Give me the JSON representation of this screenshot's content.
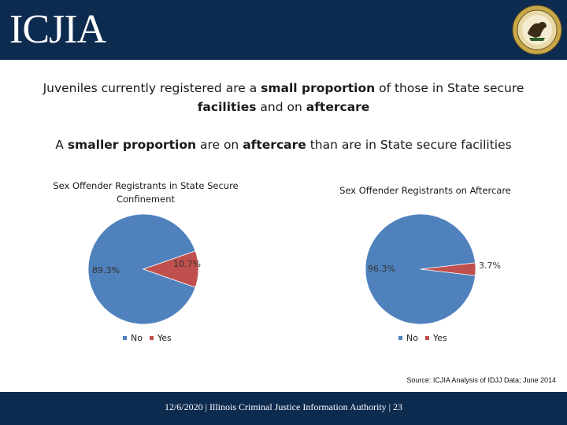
{
  "header": {
    "logo_text": "ICJIA"
  },
  "headline1": {
    "p1": "Juveniles currently registered are a ",
    "b1": "small proportion",
    "p2": " of those in State secure",
    "b2": "facilities",
    "p3": " and on ",
    "b3": "aftercare"
  },
  "headline2": {
    "p1": "A ",
    "b1": "smaller proportion",
    "p2": " are on ",
    "b2": "aftercare",
    "p3": " than are in State secure facilities"
  },
  "colors": {
    "no": "#4f81bd",
    "yes": "#c0504d",
    "header_bg": "#0d2a4f"
  },
  "chart_data": [
    {
      "type": "pie",
      "title": "Sex Offender Registrants in State Secure Confinement",
      "categories": [
        "No",
        "Yes"
      ],
      "values": [
        89.3,
        10.7
      ],
      "labels": [
        "89.3%",
        "10.7%"
      ],
      "legend": [
        "No",
        "Yes"
      ]
    },
    {
      "type": "pie",
      "title": "Sex Offender Registrants on Aftercare",
      "categories": [
        "No",
        "Yes"
      ],
      "values": [
        96.3,
        3.7
      ],
      "labels": [
        "96.3%",
        "3.7%"
      ],
      "legend": [
        "No",
        "Yes"
      ]
    }
  ],
  "source": "Source: ICJIA Analysis of IDJJ Data; June 2014",
  "footer": "12/6/2020 | Illinois Criminal Justice Information Authority | 23"
}
